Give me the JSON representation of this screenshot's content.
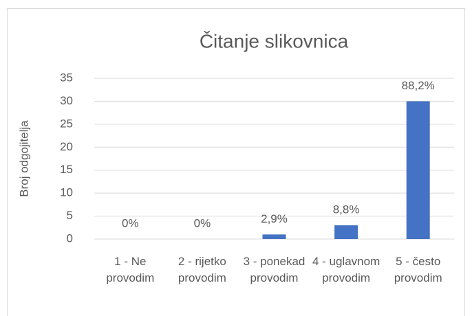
{
  "chart_data": {
    "type": "bar",
    "title": "Čitanje slikovnica",
    "y_label": "Broj odgojitelja",
    "categories": [
      "1 - Ne provodim",
      "2 - rijetko provodim",
      "3 - ponekad provodim",
      "4 - uglavnom provodim",
      "5 - često provodim"
    ],
    "values": [
      0,
      0,
      1,
      3,
      30
    ],
    "value_labels": [
      "0%",
      "0%",
      "2,9%",
      "8,8%",
      "88,2%"
    ],
    "color": "#4472c4",
    "ylim": [
      0,
      35
    ],
    "yticks": [
      0,
      5,
      10,
      15,
      20,
      25,
      30,
      35
    ],
    "grid": true
  }
}
